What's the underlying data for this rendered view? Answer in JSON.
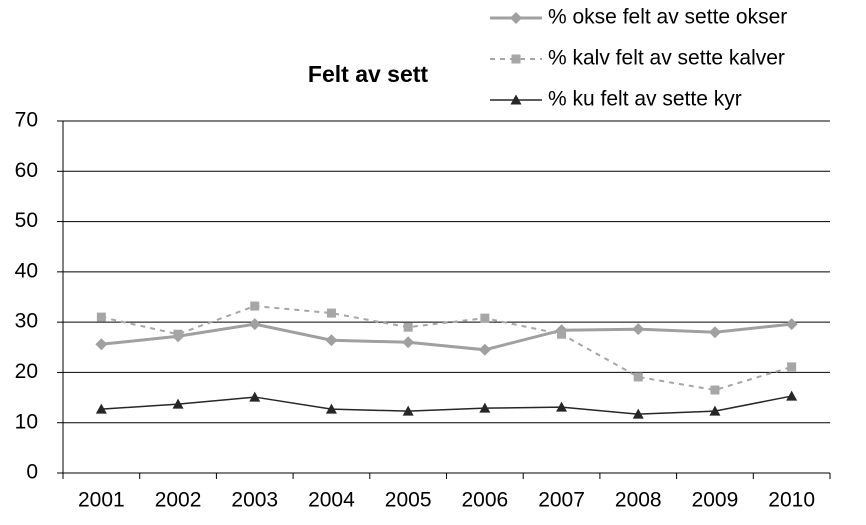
{
  "chart_data": {
    "type": "line",
    "title": "Felt av sett",
    "categories": [
      "2001",
      "2002",
      "2003",
      "2004",
      "2005",
      "2006",
      "2007",
      "2008",
      "2009",
      "2010"
    ],
    "series": [
      {
        "name": "% okse felt av sette okser",
        "color": "#a0a0a0",
        "marker": "diamond",
        "dashed": false,
        "width": 3,
        "values": [
          25.6,
          27.2,
          29.6,
          26.4,
          26.0,
          24.5,
          28.4,
          28.6,
          28.0,
          29.6
        ]
      },
      {
        "name": "% kalv felt av sette kalver",
        "color": "#a6a6a6",
        "marker": "square",
        "dashed": true,
        "width": 2,
        "values": [
          31.0,
          27.6,
          33.2,
          31.8,
          29.0,
          30.8,
          27.6,
          19.1,
          16.5,
          21.1
        ]
      },
      {
        "name": "% ku felt av sette kyr",
        "color": "#262626",
        "marker": "triangle",
        "dashed": false,
        "width": 1.5,
        "values": [
          12.7,
          13.7,
          15.1,
          12.7,
          12.3,
          12.9,
          13.1,
          11.7,
          12.3,
          15.3
        ]
      }
    ],
    "ylim": [
      0,
      70
    ],
    "yticks": [
      0,
      10,
      20,
      30,
      40,
      50,
      60,
      70
    ],
    "grid": true,
    "legend": "top-right"
  }
}
